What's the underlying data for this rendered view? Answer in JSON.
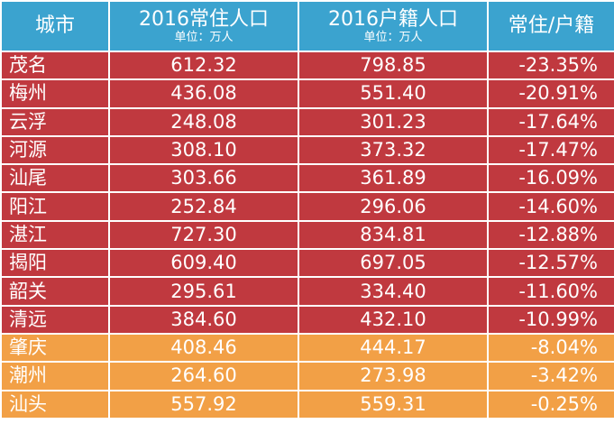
{
  "table": {
    "header": [
      {
        "title": "城市"
      },
      {
        "title": "2016常住人口",
        "sub": "单位：万人"
      },
      {
        "title": "2016户籍人口",
        "sub": "单位：万人"
      },
      {
        "title": "常住/户籍"
      }
    ],
    "header_color": "#3ba3cf",
    "rows": [
      [
        "茂名",
        "612.32",
        "798.85",
        "-23.35%"
      ],
      [
        "梅州",
        "436.08",
        "551.40",
        "-20.91%"
      ],
      [
        "云浮",
        "248.08",
        "301.23",
        "-17.64%"
      ],
      [
        "河源",
        "308.10",
        "373.32",
        "-17.47%"
      ],
      [
        "汕尾",
        "303.66",
        "361.89",
        "-16.09%"
      ],
      [
        "阳江",
        "252.84",
        "296.06",
        "-14.60%"
      ],
      [
        "湛江",
        "727.30",
        "834.81",
        "-12.88%"
      ],
      [
        "揭阳",
        "609.40",
        "697.05",
        "-12.57%"
      ],
      [
        "韶关",
        "295.61",
        "334.40",
        "-11.60%"
      ],
      [
        "清远",
        "384.60",
        "432.10",
        "-10.99%"
      ],
      [
        "肇庆",
        "408.46",
        "444.17",
        "-8.04%"
      ],
      [
        "潮州",
        "264.60",
        "273.98",
        "-3.42%"
      ],
      [
        "汕头",
        "557.92",
        "559.31",
        "-0.25%"
      ]
    ],
    "row_colors": [
      "#c0393f",
      "#c0393f",
      "#c0393f",
      "#c0393f",
      "#c0393f",
      "#c0393f",
      "#c0393f",
      "#c0393f",
      "#c0393f",
      "#c0393f",
      "#f2a046",
      "#f2a046",
      "#f2a046"
    ]
  }
}
